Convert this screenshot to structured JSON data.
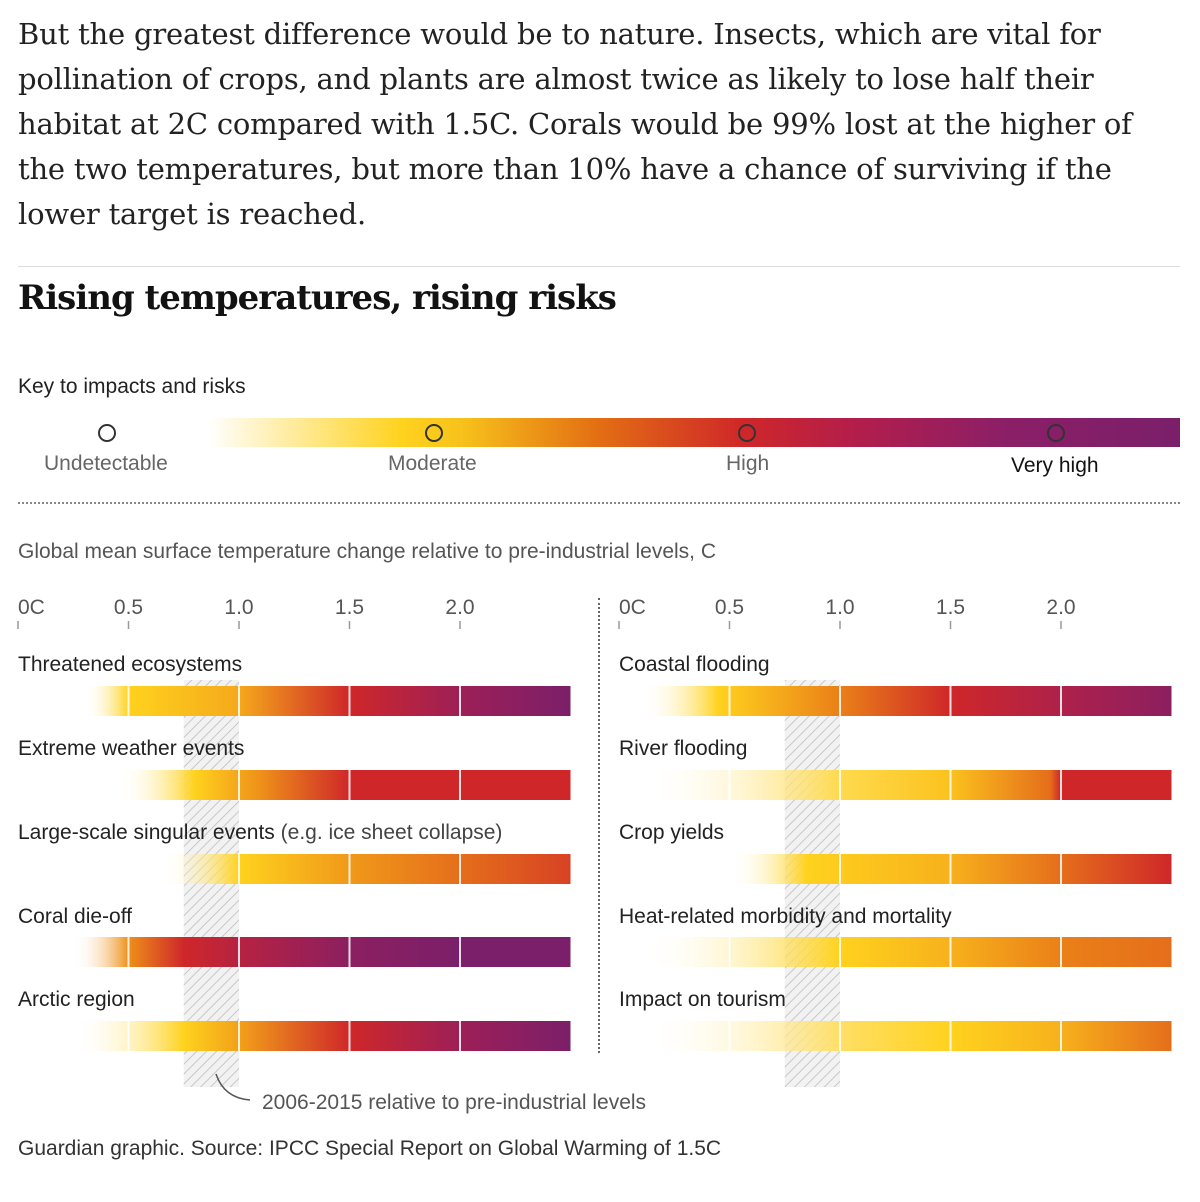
{
  "article": {
    "paragraph": "But the greatest difference would be to nature. Insects, which are vital for pollination of crops, and plants are almost twice as likely to lose half their habitat at 2C compared with 1.5C. Corals would be 99% lost at the higher of the two temperatures, but more than 10% have a chance of surviving if the lower target is reached."
  },
  "graphic": {
    "title": "Rising temperatures, rising risks",
    "key_title": "Key to impacts and risks",
    "key_levels": [
      {
        "label": "Undetectable",
        "marker_color": "#ffffff"
      },
      {
        "label": "Moderate",
        "marker_color": "#f7c21b"
      },
      {
        "label": "High",
        "marker_color": "#cf2729"
      },
      {
        "label": "Very high",
        "marker_color": "#7b1f6a"
      }
    ],
    "axis_title": "Global mean surface temperature change relative to pre-industrial levels, C",
    "footnote": "2006-2015 relative to pre-industrial levels",
    "source": "Guardian graphic. Source: IPCC Special Report on Global Warming of 1.5C",
    "colors": {
      "undetectable": "#ffffff",
      "moderate": "#ffd21e",
      "high": "#cf2729",
      "very_high": "#7b1f6a",
      "hatch": "#c8c8c8"
    }
  },
  "chart_data": [
    {
      "type": "heatmap",
      "panel": "left",
      "x_ticks": [
        "0C",
        "0.5",
        "1.0",
        "1.5",
        "2.0"
      ],
      "tick_values": [
        0,
        0.5,
        1.0,
        1.5,
        2.0
      ],
      "xlim": [
        0,
        2.5
      ],
      "hatch_range": [
        0.75,
        1.0
      ],
      "hatch_label": "2006-2015 relative to pre-industrial levels",
      "color_scale": "0 = Undetectable, 1 = Moderate, 2 = High, 3 = Very high",
      "rows": [
        {
          "name": "Threatened ecosystems",
          "stops": [
            [
              0.3,
              0
            ],
            [
              0.5,
              1.0
            ],
            [
              1.0,
              1.25
            ],
            [
              1.5,
              2.0
            ],
            [
              2.0,
              2.6
            ],
            [
              2.5,
              3.0
            ]
          ]
        },
        {
          "name": "Extreme weather events",
          "stops": [
            [
              0.45,
              0
            ],
            [
              0.8,
              1.0
            ],
            [
              1.1,
              1.4
            ],
            [
              1.5,
              2.0
            ],
            [
              2.5,
              2.0
            ]
          ]
        },
        {
          "name": "Large-scale singular events",
          "name_suffix": "(e.g. ice sheet collapse)",
          "stops": [
            [
              0.65,
              0
            ],
            [
              1.0,
              1.0
            ],
            [
              1.5,
              1.35
            ],
            [
              2.0,
              1.6
            ],
            [
              2.5,
              1.85
            ]
          ]
        },
        {
          "name": "Coral die-off",
          "stops": [
            [
              0.25,
              0
            ],
            [
              0.5,
              1.4
            ],
            [
              0.75,
              2.0
            ],
            [
              1.0,
              2.3
            ],
            [
              1.5,
              2.8
            ],
            [
              2.0,
              3.0
            ],
            [
              2.5,
              3.0
            ]
          ]
        },
        {
          "name": "Arctic region",
          "stops": [
            [
              0.25,
              0
            ],
            [
              0.75,
              1.0
            ],
            [
              1.0,
              1.3
            ],
            [
              1.5,
              2.0
            ],
            [
              2.0,
              2.6
            ],
            [
              2.5,
              3.0
            ]
          ]
        }
      ]
    },
    {
      "type": "heatmap",
      "panel": "right",
      "x_ticks": [
        "0C",
        "0.5",
        "1.0",
        "1.5",
        "2.0"
      ],
      "tick_values": [
        0,
        0.5,
        1.0,
        1.5,
        2.0
      ],
      "xlim": [
        0,
        2.5
      ],
      "hatch_range": [
        0.75,
        1.0
      ],
      "color_scale": "0 = Undetectable, 1 = Moderate, 2 = High, 3 = Very high",
      "rows": [
        {
          "name": "Coastal flooding",
          "stops": [
            [
              0.1,
              0
            ],
            [
              0.45,
              1.0
            ],
            [
              1.0,
              1.5
            ],
            [
              1.5,
              2.0
            ],
            [
              2.0,
              2.4
            ],
            [
              2.5,
              2.8
            ]
          ]
        },
        {
          "name": "River flooding",
          "stops": [
            [
              0.1,
              0
            ],
            [
              1.0,
              0.8
            ],
            [
              1.5,
              1.1
            ],
            [
              1.95,
              1.6
            ],
            [
              2.0,
              2.0
            ],
            [
              2.5,
              2.0
            ]
          ]
        },
        {
          "name": "Crop yields",
          "stops": [
            [
              0.5,
              0
            ],
            [
              0.85,
              1.0
            ],
            [
              1.5,
              1.2
            ],
            [
              2.0,
              1.6
            ],
            [
              2.5,
              2.0
            ]
          ]
        },
        {
          "name": "Heat-related morbidity and mortality",
          "stops": [
            [
              0.1,
              0
            ],
            [
              1.0,
              1.0
            ],
            [
              1.5,
              1.2
            ],
            [
              2.0,
              1.5
            ],
            [
              2.5,
              1.6
            ]
          ]
        },
        {
          "name": "Impact on tourism",
          "stops": [
            [
              0.1,
              0
            ],
            [
              1.0,
              0.7
            ],
            [
              1.5,
              1.0
            ],
            [
              2.0,
              1.2
            ],
            [
              2.5,
              1.6
            ]
          ]
        }
      ]
    }
  ]
}
